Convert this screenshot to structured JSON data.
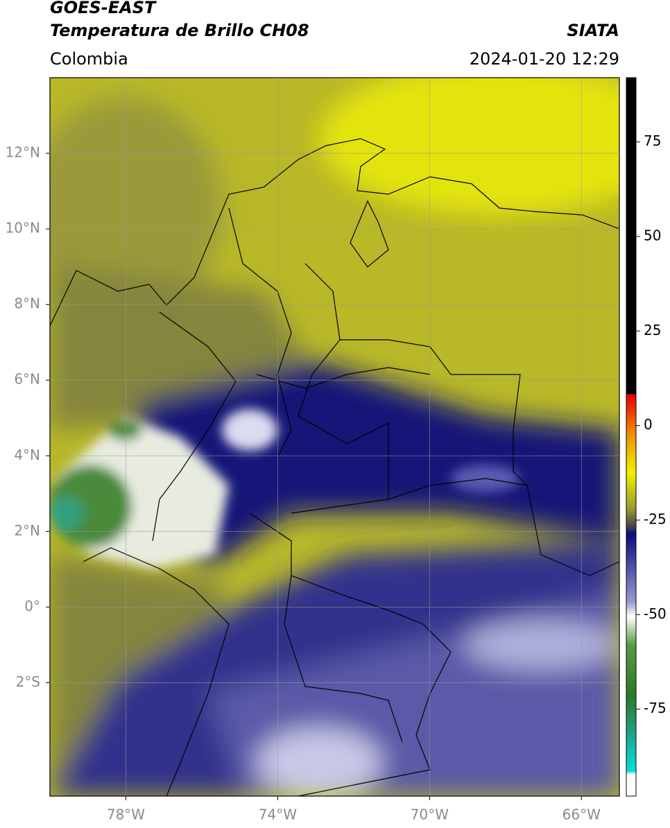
{
  "header": {
    "title": "GOES-EAST",
    "subtitle": "Temperatura de Brillo CH08",
    "region": "Colombia",
    "source": "SIATA",
    "timestamp": "2024-01-20 12:29"
  },
  "map": {
    "xlim": [
      -80,
      -65
    ],
    "ylim": [
      -5,
      14
    ],
    "lon_ticks": [
      {
        "value": -78,
        "label": "78°W"
      },
      {
        "value": -74,
        "label": "74°W"
      },
      {
        "value": -70,
        "label": "70°W"
      },
      {
        "value": -66,
        "label": "66°W"
      }
    ],
    "lat_ticks": [
      {
        "value": 12,
        "label": "12°N"
      },
      {
        "value": 10,
        "label": "10°N"
      },
      {
        "value": 8,
        "label": "8°N"
      },
      {
        "value": 6,
        "label": "6°N"
      },
      {
        "value": 4,
        "label": "4°N"
      },
      {
        "value": 2,
        "label": "2°N"
      },
      {
        "value": 0,
        "label": "0°"
      },
      {
        "value": -2,
        "label": "2°S"
      }
    ]
  },
  "colorbar": {
    "lim": [
      -98,
      92
    ],
    "ticks": [
      75,
      50,
      25,
      0,
      -25,
      -50,
      -75
    ]
  }
}
